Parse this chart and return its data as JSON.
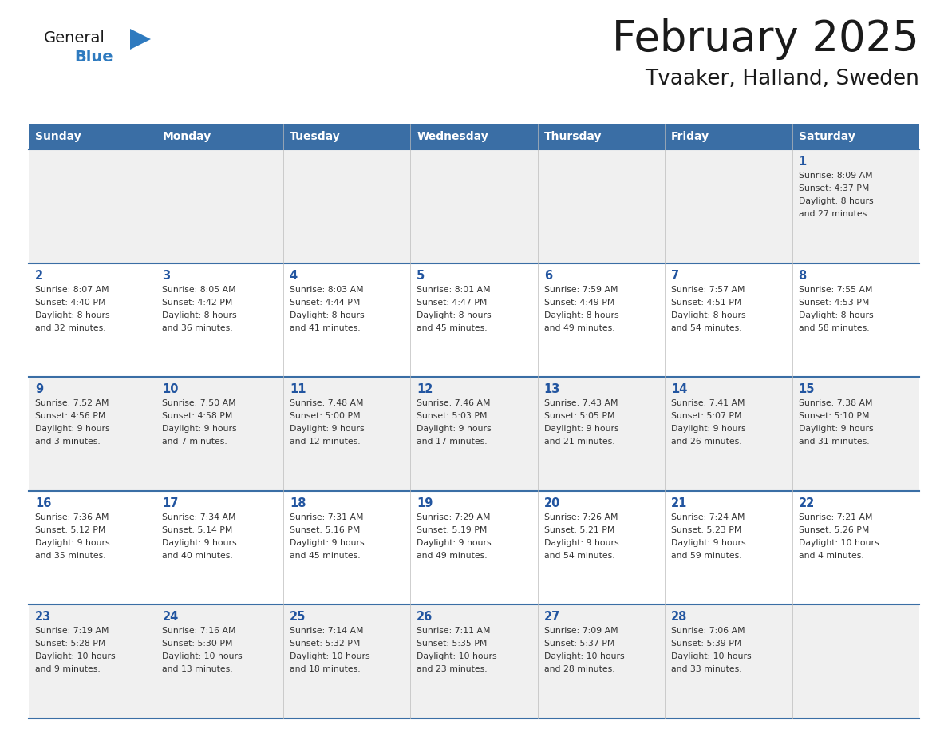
{
  "title": "February 2025",
  "subtitle": "Tvaaker, Halland, Sweden",
  "days_of_week": [
    "Sunday",
    "Monday",
    "Tuesday",
    "Wednesday",
    "Thursday",
    "Friday",
    "Saturday"
  ],
  "header_bg": "#3a6ea5",
  "header_text": "#ffffff",
  "row_bg_odd": "#f0f0f0",
  "row_bg_even": "#ffffff",
  "day_text_color": "#2255a0",
  "info_text_color": "#333333",
  "border_color": "#3a6ea5",
  "logo_general_color": "#1a1a1a",
  "logo_blue_color": "#2e7abf",
  "triangle_color": "#2e7abf",
  "calendar_data": [
    [
      null,
      null,
      null,
      null,
      null,
      null,
      {
        "day": 1,
        "sunrise": "8:09 AM",
        "sunset": "4:37 PM",
        "daylight": "8 hours and 27 minutes."
      }
    ],
    [
      {
        "day": 2,
        "sunrise": "8:07 AM",
        "sunset": "4:40 PM",
        "daylight": "8 hours and 32 minutes."
      },
      {
        "day": 3,
        "sunrise": "8:05 AM",
        "sunset": "4:42 PM",
        "daylight": "8 hours and 36 minutes."
      },
      {
        "day": 4,
        "sunrise": "8:03 AM",
        "sunset": "4:44 PM",
        "daylight": "8 hours and 41 minutes."
      },
      {
        "day": 5,
        "sunrise": "8:01 AM",
        "sunset": "4:47 PM",
        "daylight": "8 hours and 45 minutes."
      },
      {
        "day": 6,
        "sunrise": "7:59 AM",
        "sunset": "4:49 PM",
        "daylight": "8 hours and 49 minutes."
      },
      {
        "day": 7,
        "sunrise": "7:57 AM",
        "sunset": "4:51 PM",
        "daylight": "8 hours and 54 minutes."
      },
      {
        "day": 8,
        "sunrise": "7:55 AM",
        "sunset": "4:53 PM",
        "daylight": "8 hours and 58 minutes."
      }
    ],
    [
      {
        "day": 9,
        "sunrise": "7:52 AM",
        "sunset": "4:56 PM",
        "daylight": "9 hours and 3 minutes."
      },
      {
        "day": 10,
        "sunrise": "7:50 AM",
        "sunset": "4:58 PM",
        "daylight": "9 hours and 7 minutes."
      },
      {
        "day": 11,
        "sunrise": "7:48 AM",
        "sunset": "5:00 PM",
        "daylight": "9 hours and 12 minutes."
      },
      {
        "day": 12,
        "sunrise": "7:46 AM",
        "sunset": "5:03 PM",
        "daylight": "9 hours and 17 minutes."
      },
      {
        "day": 13,
        "sunrise": "7:43 AM",
        "sunset": "5:05 PM",
        "daylight": "9 hours and 21 minutes."
      },
      {
        "day": 14,
        "sunrise": "7:41 AM",
        "sunset": "5:07 PM",
        "daylight": "9 hours and 26 minutes."
      },
      {
        "day": 15,
        "sunrise": "7:38 AM",
        "sunset": "5:10 PM",
        "daylight": "9 hours and 31 minutes."
      }
    ],
    [
      {
        "day": 16,
        "sunrise": "7:36 AM",
        "sunset": "5:12 PM",
        "daylight": "9 hours and 35 minutes."
      },
      {
        "day": 17,
        "sunrise": "7:34 AM",
        "sunset": "5:14 PM",
        "daylight": "9 hours and 40 minutes."
      },
      {
        "day": 18,
        "sunrise": "7:31 AM",
        "sunset": "5:16 PM",
        "daylight": "9 hours and 45 minutes."
      },
      {
        "day": 19,
        "sunrise": "7:29 AM",
        "sunset": "5:19 PM",
        "daylight": "9 hours and 49 minutes."
      },
      {
        "day": 20,
        "sunrise": "7:26 AM",
        "sunset": "5:21 PM",
        "daylight": "9 hours and 54 minutes."
      },
      {
        "day": 21,
        "sunrise": "7:24 AM",
        "sunset": "5:23 PM",
        "daylight": "9 hours and 59 minutes."
      },
      {
        "day": 22,
        "sunrise": "7:21 AM",
        "sunset": "5:26 PM",
        "daylight": "10 hours and 4 minutes."
      }
    ],
    [
      {
        "day": 23,
        "sunrise": "7:19 AM",
        "sunset": "5:28 PM",
        "daylight": "10 hours and 9 minutes."
      },
      {
        "day": 24,
        "sunrise": "7:16 AM",
        "sunset": "5:30 PM",
        "daylight": "10 hours and 13 minutes."
      },
      {
        "day": 25,
        "sunrise": "7:14 AM",
        "sunset": "5:32 PM",
        "daylight": "10 hours and 18 minutes."
      },
      {
        "day": 26,
        "sunrise": "7:11 AM",
        "sunset": "5:35 PM",
        "daylight": "10 hours and 23 minutes."
      },
      {
        "day": 27,
        "sunrise": "7:09 AM",
        "sunset": "5:37 PM",
        "daylight": "10 hours and 28 minutes."
      },
      {
        "day": 28,
        "sunrise": "7:06 AM",
        "sunset": "5:39 PM",
        "daylight": "10 hours and 33 minutes."
      },
      null
    ]
  ]
}
